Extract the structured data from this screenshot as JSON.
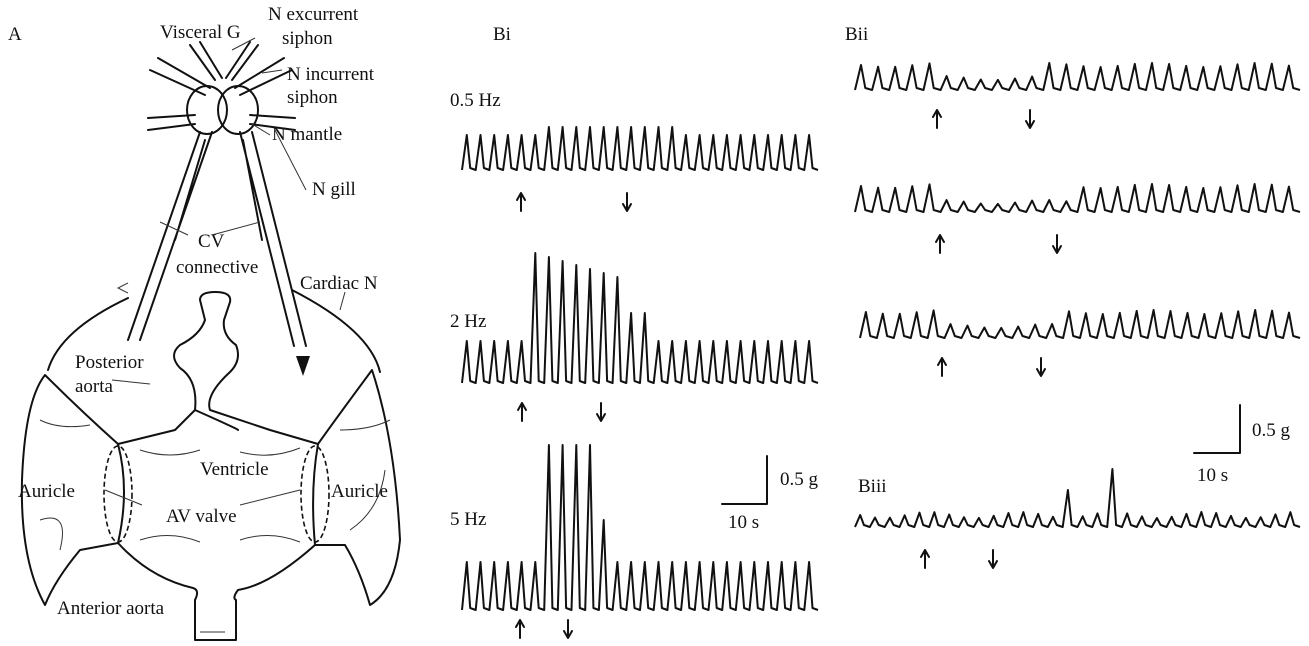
{
  "panel_a": {
    "label": "A",
    "annotations": [
      "Visceral G",
      "N excurrent",
      "siphon",
      "N incurrent",
      "siphon",
      "N mantle",
      "N gill",
      "CV",
      "connective",
      "Cardiac N",
      "Posterior",
      "aorta",
      "Ventricle",
      "Auricle",
      "Auricle",
      "AV valve",
      "Anterior aorta"
    ]
  },
  "panel_bi": {
    "label": "Bi",
    "traces": [
      {
        "label": "0.5 Hz"
      },
      {
        "label": "2 Hz"
      },
      {
        "label": "5 Hz"
      }
    ],
    "scale_bar": {
      "force": "0.5 g",
      "time": "10 s"
    }
  },
  "panel_bii": {
    "label": "Bii",
    "scale_bar": {
      "force": "0.5 g",
      "time": "10 s"
    }
  },
  "panel_biii": {
    "label": "Biii"
  }
}
